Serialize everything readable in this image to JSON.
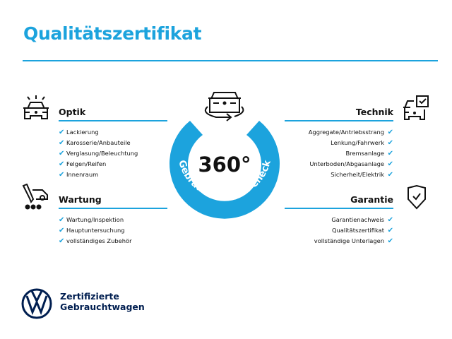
{
  "title": "Qualitätszertifikat",
  "badge": {
    "number": "360°",
    "ring_text": "Gebrauchtwagen-Check",
    "color": "#1ca3dd"
  },
  "sections": {
    "optik": {
      "title": "Optik",
      "items": [
        "Lackierung",
        "Karosserie/Anbauteile",
        "Verglasung/Beleuchtung",
        "Felgen/Reifen",
        "Innenraum"
      ]
    },
    "wartung": {
      "title": "Wartung",
      "items": [
        "Wartung/Inspektion",
        "Hauptuntersuchung",
        "vollständiges Zubehör"
      ]
    },
    "technik": {
      "title": "Technik",
      "items": [
        "Aggregate/Antriebsstrang",
        "Lenkung/Fahrwerk",
        "Bremsanlage",
        "Unterboden/Abgasanlage",
        "Sicherheit/Elektrik"
      ]
    },
    "garantie": {
      "title": "Garantie",
      "items": [
        "Garantienachweis",
        "Qualitätszertifikat",
        "vollständige Unterlagen"
      ]
    }
  },
  "check": "✔",
  "brand": {
    "line1": "Zertifizierte",
    "line2": "Gebrauchtwagen",
    "color": "#001e50"
  }
}
